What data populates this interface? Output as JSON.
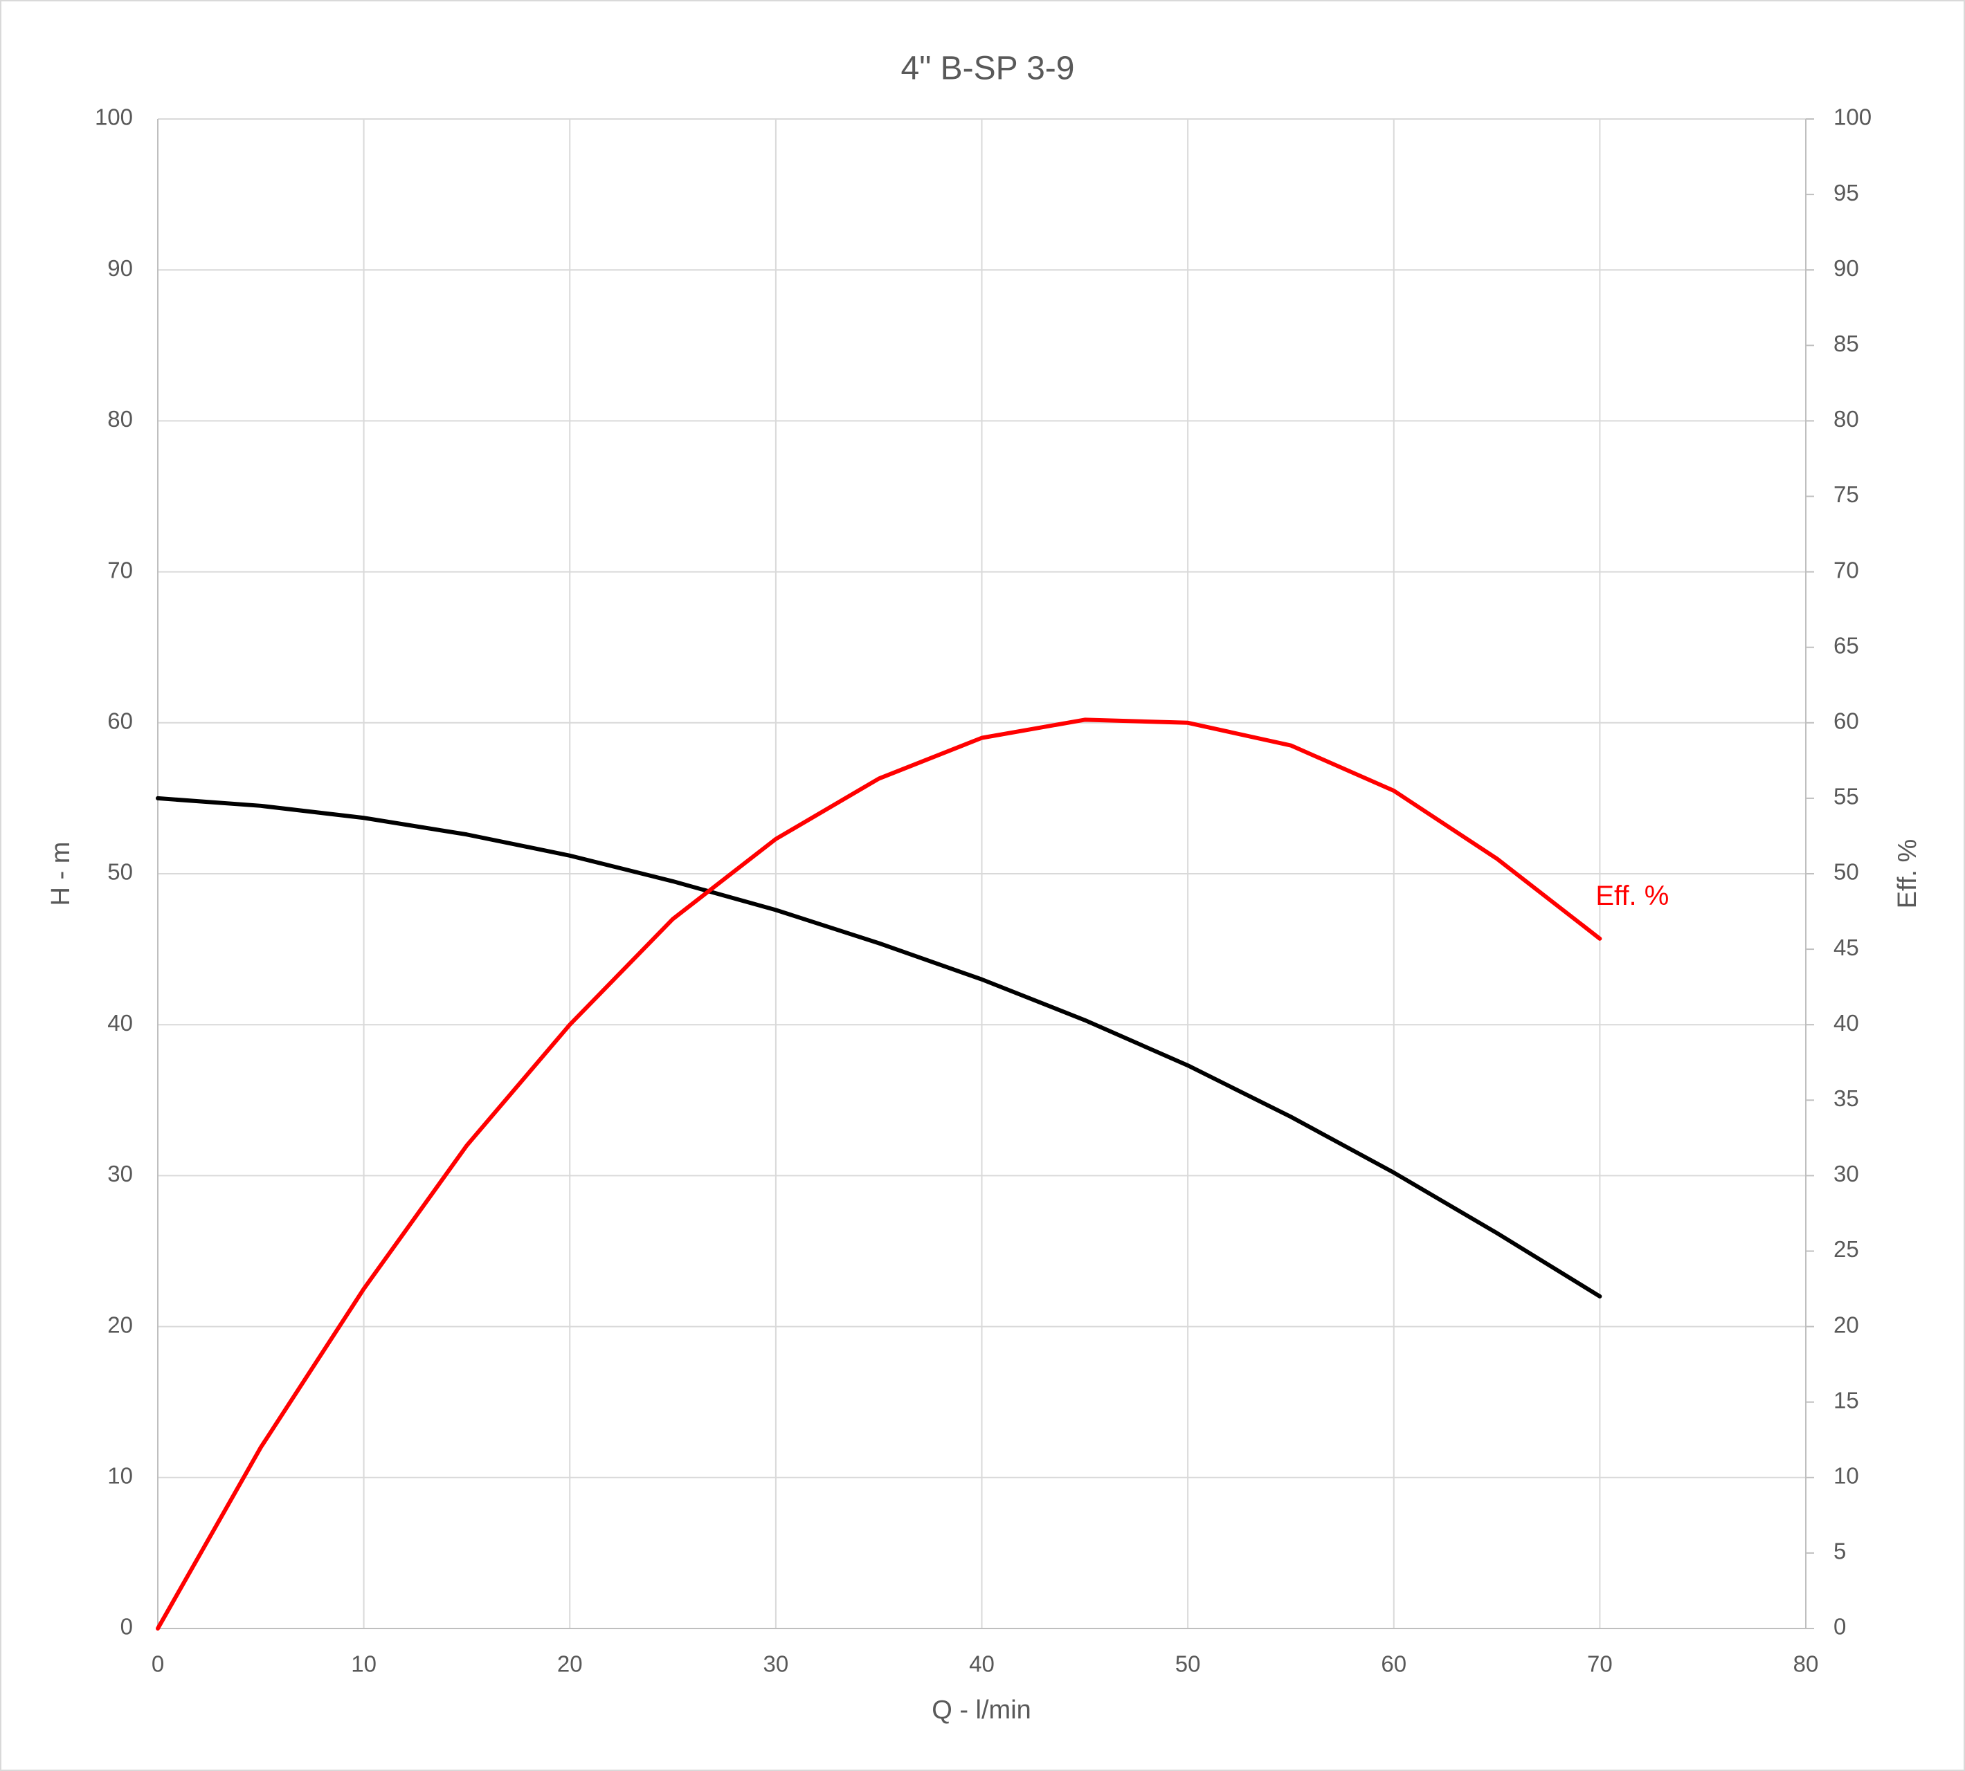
{
  "chart_data": {
    "type": "line",
    "title": "4\" B-SP 3-9",
    "x_label": "Q - l/min",
    "y_label": "H - m",
    "y2_label": "Eff. %",
    "x": [
      0,
      5,
      10,
      15,
      20,
      25,
      30,
      35,
      40,
      45,
      50,
      55,
      60,
      65,
      70
    ],
    "series": [
      {
        "name": "H",
        "color": "#000000",
        "axis": "y",
        "values": [
          55,
          54.5,
          53.7,
          52.6,
          51.2,
          49.5,
          47.6,
          45.4,
          43,
          40.3,
          37.3,
          33.9,
          30.2,
          26.2,
          22
        ]
      },
      {
        "name": "Eff. %",
        "color": "#ff0000",
        "axis": "y2",
        "values": [
          0,
          12,
          22.5,
          32,
          40,
          47,
          52.3,
          56.3,
          59,
          60.2,
          60,
          58.5,
          55.5,
          51,
          45.7
        ]
      }
    ],
    "annotations": [
      {
        "text": "Eff. %",
        "x": 70,
        "y": 47.5,
        "axis": "y2",
        "color": "#ff0000"
      }
    ],
    "xlim": [
      0,
      80
    ],
    "xticks": [
      0,
      10,
      20,
      30,
      40,
      50,
      60,
      70,
      80
    ],
    "ylim": [
      0,
      100
    ],
    "yticks": [
      0,
      10,
      20,
      30,
      40,
      50,
      60,
      70,
      80,
      90,
      100
    ],
    "y2lim": [
      0,
      100
    ],
    "y2ticks": [
      0,
      5,
      10,
      15,
      20,
      25,
      30,
      35,
      40,
      45,
      50,
      55,
      60,
      65,
      70,
      75,
      80,
      85,
      90,
      95,
      100
    ],
    "grid": true
  }
}
